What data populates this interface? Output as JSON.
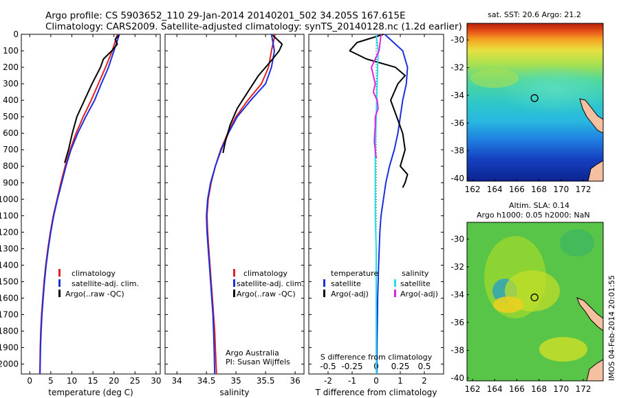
{
  "header": {
    "title_line1": "Argo profile: CS 5903652_110 29-Jan-2014 20140201_502 34.205S 167.615E",
    "title_line2": "Climatology: CARS2009. Satellite-adjusted climatology: synTS_20140128.nc (1.2d earlier)"
  },
  "colors": {
    "climatology": "#e02020",
    "satellite": "#1a2ee0",
    "argo": "#000000",
    "sal_satellite": "#20e0e8",
    "sal_argo": "#e020e0"
  },
  "depth_axis": {
    "ylim": [
      2060,
      0
    ],
    "ticks": [
      "0",
      "100",
      "200",
      "300",
      "400",
      "500",
      "600",
      "700",
      "800",
      "900",
      "1000",
      "1100",
      "1200",
      "1300",
      "1400",
      "1500",
      "1600",
      "1700",
      "1800",
      "1900",
      "2000"
    ]
  },
  "temp_panel": {
    "xlabel": "temperature (deg C)",
    "xlim": [
      -2,
      31
    ],
    "xticks": [
      "0",
      "5",
      "10",
      "15",
      "20",
      "25",
      "30"
    ],
    "legend": [
      "climatology",
      "satellite-adj. clim.",
      "Argo(..raw -QC)"
    ]
  },
  "sal_panel": {
    "xlabel": "salinity",
    "xlim": [
      33.8,
      36.15
    ],
    "xticks": [
      "34",
      "34.5",
      "35",
      "35.5",
      "36"
    ],
    "legend": [
      "climatology",
      "satellite-adj. clim.",
      "Argo(..raw -QC)"
    ],
    "note_line1": "Argo Australia",
    "note_line2": "PI: Susan Wijffels"
  },
  "diff_panel": {
    "xlabel": "T difference from climatology",
    "top_label": "S difference from climatology",
    "xlim": [
      -2.8,
      2.8
    ],
    "t_ticks": [
      "-2",
      "-1",
      "0",
      "1",
      "2"
    ],
    "s_ticks": [
      "-0.5",
      "-0.25",
      "0",
      "0.25",
      "0.5"
    ],
    "legend_temp_title": "temperature",
    "legend_sal_title": "salinity",
    "legend_items": [
      "satellite",
      "Argo(-adj)",
      "satellite",
      "Argo(-adj)"
    ]
  },
  "map_sst": {
    "title": "sat. SST: 20.6 Argo: 21.2",
    "lat_ticks": [
      "-30",
      "-32",
      "-34",
      "-36",
      "-38",
      "-40"
    ],
    "lon_ticks": [
      "162",
      "164",
      "166",
      "168",
      "170",
      "172"
    ],
    "marker": {
      "lon": 167.6,
      "lat": -34.2
    }
  },
  "map_sla": {
    "title_line1": "Altim. SLA: 0.14",
    "title_line2": "Argo h1000: 0.05 h2000: NaN",
    "lat_ticks": [
      "-30",
      "-32",
      "-34",
      "-36",
      "-38",
      "-40"
    ],
    "lon_ticks": [
      "162",
      "164",
      "166",
      "168",
      "170",
      "172"
    ],
    "marker": {
      "lon": 167.6,
      "lat": -34.2
    }
  },
  "side_stamp": "IMOS 04-Feb-2014 20:01:55",
  "chart_data": [
    {
      "type": "line",
      "title": "",
      "xlabel": "temperature (deg C)",
      "ylabel": "",
      "xlim": [
        -2,
        31
      ],
      "ylim": [
        2060,
        0
      ],
      "series": [
        {
          "name": "climatology",
          "x": [
            20.8,
            19.6,
            18.0,
            16.3,
            14.6,
            12.7,
            11.0,
            9.6,
            8.4,
            7.4,
            6.5,
            5.6,
            4.9,
            4.3,
            3.8,
            3.4,
            3.1,
            2.8,
            2.6,
            2.5,
            2.4
          ],
          "y": [
            0,
            100,
            200,
            300,
            400,
            500,
            600,
            700,
            800,
            900,
            1000,
            1100,
            1200,
            1300,
            1400,
            1500,
            1600,
            1700,
            1800,
            1900,
            2060
          ]
        },
        {
          "name": "satellite-adj. clim.",
          "x": [
            21.3,
            20.0,
            18.7,
            17.0,
            15.4,
            13.3,
            11.4,
            9.8,
            8.6,
            7.6,
            6.6,
            5.7,
            5.0,
            4.4,
            3.9,
            3.5,
            3.2,
            2.9,
            2.7,
            2.55,
            2.45
          ],
          "y": [
            0,
            100,
            200,
            300,
            400,
            500,
            600,
            700,
            800,
            900,
            1000,
            1100,
            1200,
            1300,
            1400,
            1500,
            1600,
            1700,
            1800,
            1900,
            2060
          ]
        },
        {
          "name": "Argo(..raw -QC)",
          "x": [
            21.2,
            20.3,
            20.8,
            19.5,
            17.5,
            16.8,
            14.8,
            13.0,
            11.2,
            10.1,
            9.2,
            8.3
          ],
          "y": [
            5,
            30,
            60,
            100,
            150,
            200,
            300,
            400,
            500,
            600,
            700,
            780
          ]
        }
      ]
    },
    {
      "type": "line",
      "title": "",
      "xlabel": "salinity",
      "ylabel": "",
      "xlim": [
        33.8,
        36.15
      ],
      "ylim": [
        2060,
        0
      ],
      "series": [
        {
          "name": "climatology",
          "x": [
            35.66,
            35.6,
            35.55,
            35.43,
            35.2,
            35.0,
            34.86,
            34.74,
            34.65,
            34.58,
            34.53,
            34.51,
            34.52,
            34.54,
            34.56,
            34.58,
            34.6,
            34.62,
            34.64,
            34.65,
            34.67
          ],
          "y": [
            0,
            100,
            200,
            300,
            400,
            500,
            600,
            700,
            800,
            900,
            1000,
            1100,
            1200,
            1300,
            1400,
            1500,
            1600,
            1700,
            1800,
            1900,
            2060
          ]
        },
        {
          "name": "satellite-adj. clim.",
          "x": [
            35.6,
            35.65,
            35.6,
            35.5,
            35.25,
            35.02,
            34.87,
            34.75,
            34.65,
            34.57,
            34.52,
            34.5,
            34.51,
            34.53,
            34.55,
            34.57,
            34.59,
            34.61,
            34.62,
            34.63,
            34.64
          ],
          "y": [
            0,
            100,
            200,
            300,
            400,
            500,
            600,
            700,
            800,
            900,
            1000,
            1100,
            1200,
            1300,
            1400,
            1500,
            1600,
            1700,
            1800,
            1900,
            2060
          ]
        },
        {
          "name": "Argo(..raw -QC)",
          "x": [
            35.62,
            35.78,
            35.73,
            35.62,
            35.5,
            35.38,
            35.2,
            35.02,
            34.9,
            34.82,
            34.78
          ],
          "y": [
            5,
            60,
            100,
            150,
            200,
            250,
            350,
            450,
            550,
            650,
            720
          ]
        }
      ]
    },
    {
      "type": "line",
      "title": "",
      "xlabel": "T difference from climatology",
      "ylabel": "",
      "xlim": [
        -2.8,
        2.8
      ],
      "ylim": [
        2060,
        0
      ],
      "series": [
        {
          "name": "temperature satellite",
          "x": [
            0.35,
            1.1,
            1.3,
            1.25,
            1.1,
            1.0,
            0.9,
            0.75,
            0.55,
            0.4,
            0.3,
            0.2,
            0.15,
            0.1,
            0.08,
            0.06,
            0.05,
            0.04,
            0.03,
            0.02
          ],
          "y": [
            0,
            100,
            200,
            300,
            400,
            500,
            600,
            700,
            800,
            900,
            1000,
            1100,
            1200,
            1400,
            1500,
            1600,
            1700,
            1800,
            1900,
            2060
          ]
        },
        {
          "name": "temperature Argo(-adj)",
          "x": [
            0.3,
            -0.8,
            -1.1,
            -0.4,
            0.8,
            1.2,
            0.9,
            0.6,
            0.85,
            1.1,
            1.2,
            1.0,
            1.3,
            1.2,
            1.1
          ],
          "y": [
            0,
            50,
            100,
            150,
            200,
            250,
            300,
            400,
            500,
            600,
            700,
            800,
            850,
            900,
            930
          ]
        },
        {
          "name": "salinity satellite",
          "x": [
            0.0,
            0.02,
            0.01,
            0.0,
            -0.01,
            -0.01,
            -0.01,
            0.0,
            0.0,
            0.0,
            0.0,
            0.0,
            0.0,
            0.0
          ],
          "y": [
            0,
            100,
            300,
            500,
            700,
            900,
            1100,
            1300,
            1500,
            1600,
            1700,
            1800,
            1900,
            2060
          ]
        },
        {
          "name": "salinity Argo(-adj)",
          "x": [
            0.05,
            0.03,
            -0.05,
            -0.01,
            -0.03,
            0.01,
            0.02,
            -0.01,
            -0.01,
            -0.02,
            0.0
          ],
          "y": [
            0,
            100,
            200,
            300,
            350,
            400,
            450,
            500,
            550,
            650,
            750
          ]
        }
      ]
    }
  ]
}
